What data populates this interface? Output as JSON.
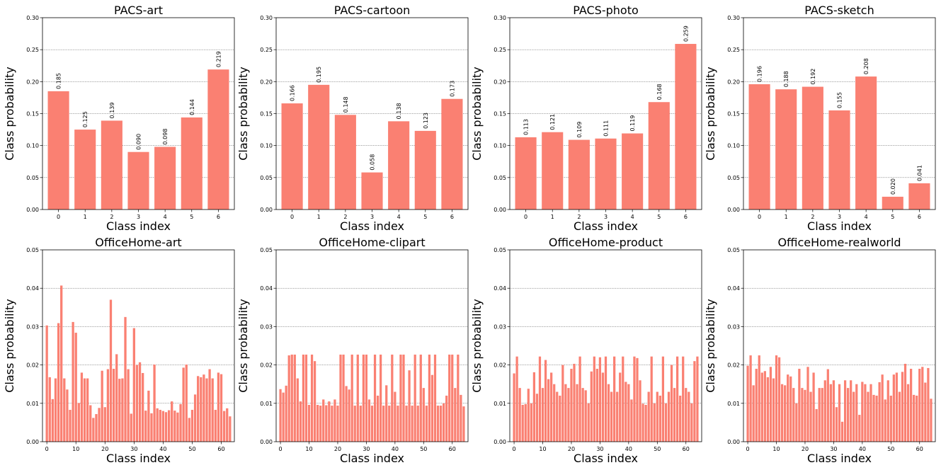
{
  "bar_color": "#fa8072",
  "chart_data": [
    {
      "type": "bar",
      "title": "PACS-art",
      "xlabel": "Class index",
      "ylabel": "Class probability",
      "ylim": [
        0,
        0.3
      ],
      "yticks": [
        "0.00",
        "0.05",
        "0.10",
        "0.15",
        "0.20",
        "0.25",
        "0.30"
      ],
      "grid": "y",
      "categories": [
        "0",
        "1",
        "2",
        "3",
        "4",
        "5",
        "6"
      ],
      "values": [
        0.185,
        0.125,
        0.139,
        0.09,
        0.098,
        0.144,
        0.219
      ],
      "data_labels": [
        "0.185",
        "0.125",
        "0.139",
        "0.090",
        "0.098",
        "0.144",
        "0.219"
      ]
    },
    {
      "type": "bar",
      "title": "PACS-cartoon",
      "xlabel": "Class index",
      "ylabel": "Class probability",
      "ylim": [
        0,
        0.3
      ],
      "yticks": [
        "0.00",
        "0.05",
        "0.10",
        "0.15",
        "0.20",
        "0.25",
        "0.30"
      ],
      "grid": "y",
      "categories": [
        "0",
        "1",
        "2",
        "3",
        "4",
        "5",
        "6"
      ],
      "values": [
        0.166,
        0.195,
        0.148,
        0.058,
        0.138,
        0.123,
        0.173
      ],
      "data_labels": [
        "0.166",
        "0.195",
        "0.148",
        "0.058",
        "0.138",
        "0.123",
        "0.173"
      ]
    },
    {
      "type": "bar",
      "title": "PACS-photo",
      "xlabel": "Class index",
      "ylabel": "Class probability",
      "ylim": [
        0,
        0.3
      ],
      "yticks": [
        "0.00",
        "0.05",
        "0.10",
        "0.15",
        "0.20",
        "0.25",
        "0.30"
      ],
      "grid": "y",
      "categories": [
        "0",
        "1",
        "2",
        "3",
        "4",
        "5",
        "6"
      ],
      "values": [
        0.113,
        0.121,
        0.109,
        0.111,
        0.119,
        0.168,
        0.259
      ],
      "data_labels": [
        "0.113",
        "0.121",
        "0.109",
        "0.111",
        "0.119",
        "0.168",
        "0.259"
      ]
    },
    {
      "type": "bar",
      "title": "PACS-sketch",
      "xlabel": "Class index",
      "ylabel": "Class probability",
      "ylim": [
        0,
        0.3
      ],
      "yticks": [
        "0.00",
        "0.05",
        "0.10",
        "0.15",
        "0.20",
        "0.25",
        "0.30"
      ],
      "grid": "y",
      "categories": [
        "0",
        "1",
        "2",
        "3",
        "4",
        "5",
        "6"
      ],
      "values": [
        0.196,
        0.188,
        0.192,
        0.155,
        0.208,
        0.02,
        0.041
      ],
      "data_labels": [
        "0.196",
        "0.188",
        "0.192",
        "0.155",
        "0.208",
        "0.020",
        "0.041"
      ]
    },
    {
      "type": "bar",
      "title": "OfficeHome-art",
      "xlabel": "Class index",
      "ylabel": "Class probability",
      "ylim": [
        0,
        0.05
      ],
      "yticks": [
        "0.00",
        "0.01",
        "0.02",
        "0.03",
        "0.04",
        "0.05"
      ],
      "xticks": [
        "0",
        "10",
        "20",
        "30",
        "40",
        "50",
        "60"
      ],
      "grid": "y",
      "values": [
        0.0303,
        0.0168,
        0.0111,
        0.0165,
        0.0309,
        0.0407,
        0.0165,
        0.0136,
        0.0083,
        0.0312,
        0.0284,
        0.0101,
        0.018,
        0.0165,
        0.0165,
        0.0095,
        0.0062,
        0.0072,
        0.0088,
        0.0185,
        0.009,
        0.0189,
        0.037,
        0.019,
        0.0228,
        0.0164,
        0.0165,
        0.0325,
        0.0189,
        0.0073,
        0.0296,
        0.02,
        0.0207,
        0.0179,
        0.0081,
        0.0133,
        0.0074,
        0.0201,
        0.0087,
        0.0083,
        0.008,
        0.0077,
        0.0082,
        0.0105,
        0.0081,
        0.0076,
        0.0098,
        0.0193,
        0.0201,
        0.0062,
        0.0083,
        0.0123,
        0.0171,
        0.0168,
        0.0175,
        0.0165,
        0.0189,
        0.0165,
        0.0083,
        0.018,
        0.0176,
        0.008,
        0.0087,
        0.0066
      ]
    },
    {
      "type": "bar",
      "title": "OfficeHome-clipart",
      "xlabel": "Class index",
      "ylabel": "Class probability",
      "ylim": [
        0,
        0.05
      ],
      "yticks": [
        "0.00",
        "0.01",
        "0.02",
        "0.03",
        "0.04",
        "0.05"
      ],
      "xticks": [
        "0",
        "10",
        "20",
        "30",
        "40",
        "50",
        "60"
      ],
      "grid": "y",
      "values": [
        0.0137,
        0.0128,
        0.0146,
        0.0225,
        0.0227,
        0.0227,
        0.0165,
        0.0105,
        0.0227,
        0.0227,
        0.0096,
        0.0227,
        0.021,
        0.0096,
        0.0094,
        0.011,
        0.0095,
        0.0105,
        0.0094,
        0.011,
        0.0094,
        0.0227,
        0.0227,
        0.0145,
        0.0136,
        0.0227,
        0.0094,
        0.0227,
        0.0094,
        0.0227,
        0.0227,
        0.011,
        0.0094,
        0.0227,
        0.012,
        0.0227,
        0.0094,
        0.0147,
        0.0094,
        0.0227,
        0.013,
        0.0094,
        0.0227,
        0.0227,
        0.0094,
        0.0186,
        0.0094,
        0.0227,
        0.0094,
        0.0227,
        0.014,
        0.0094,
        0.0227,
        0.0174,
        0.0227,
        0.0094,
        0.0094,
        0.01,
        0.012,
        0.0227,
        0.0227,
        0.014,
        0.0227,
        0.0122,
        0.0092
      ]
    },
    {
      "type": "bar",
      "title": "OfficeHome-product",
      "xlabel": "Class index",
      "ylabel": "Class probability",
      "ylim": [
        0,
        0.05
      ],
      "yticks": [
        "0.00",
        "0.01",
        "0.02",
        "0.03",
        "0.04",
        "0.05"
      ],
      "xticks": [
        "0",
        "10",
        "20",
        "30",
        "40",
        "50",
        "60"
      ],
      "grid": "y",
      "values": [
        0.0178,
        0.0222,
        0.014,
        0.0096,
        0.0098,
        0.0138,
        0.01,
        0.0181,
        0.0125,
        0.0222,
        0.014,
        0.0213,
        0.0163,
        0.018,
        0.015,
        0.013,
        0.012,
        0.02,
        0.015,
        0.014,
        0.019,
        0.0203,
        0.015,
        0.0222,
        0.014,
        0.0134,
        0.01,
        0.0183,
        0.0222,
        0.019,
        0.022,
        0.018,
        0.0222,
        0.015,
        0.013,
        0.0222,
        0.013,
        0.018,
        0.0222,
        0.0156,
        0.015,
        0.011,
        0.0222,
        0.0218,
        0.016,
        0.0099,
        0.0096,
        0.013,
        0.0222,
        0.01,
        0.013,
        0.012,
        0.0222,
        0.01,
        0.013,
        0.02,
        0.014,
        0.0222,
        0.012,
        0.0222,
        0.014,
        0.013,
        0.01,
        0.021,
        0.0222
      ]
    },
    {
      "type": "bar",
      "title": "OfficeHome-realworld",
      "xlabel": "Class index",
      "ylabel": "Class probability",
      "ylim": [
        0,
        0.05
      ],
      "yticks": [
        "0.00",
        "0.01",
        "0.02",
        "0.03",
        "0.04",
        "0.05"
      ],
      "xticks": [
        "0",
        "10",
        "20",
        "30",
        "40",
        "50",
        "60"
      ],
      "grid": "y",
      "values": [
        0.0198,
        0.0225,
        0.0147,
        0.019,
        0.0225,
        0.018,
        0.0184,
        0.0168,
        0.0195,
        0.0165,
        0.0225,
        0.022,
        0.015,
        0.0147,
        0.0175,
        0.017,
        0.014,
        0.01,
        0.019,
        0.014,
        0.0135,
        0.0195,
        0.013,
        0.018,
        0.0085,
        0.014,
        0.014,
        0.016,
        0.0189,
        0.015,
        0.016,
        0.009,
        0.015,
        0.0052,
        0.016,
        0.014,
        0.016,
        0.013,
        0.015,
        0.007,
        0.0156,
        0.015,
        0.013,
        0.015,
        0.0122,
        0.012,
        0.0155,
        0.0175,
        0.011,
        0.016,
        0.012,
        0.0175,
        0.018,
        0.013,
        0.0182,
        0.0203,
        0.015,
        0.019,
        0.0122,
        0.012,
        0.019,
        0.0195,
        0.0154,
        0.0192,
        0.0112
      ]
    }
  ]
}
